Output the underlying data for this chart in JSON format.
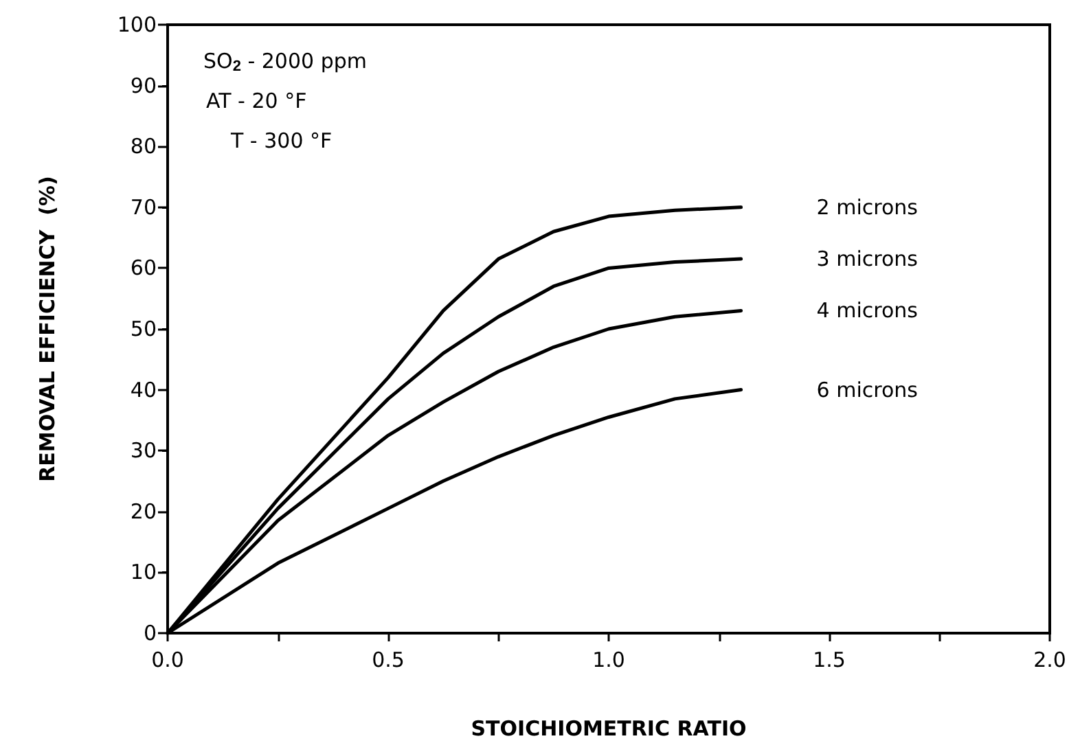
{
  "chart_data": {
    "type": "line",
    "xlabel": "STOICHIOMETRIC RATIO",
    "ylabel": "REMOVAL EFFICIENCY  (%)",
    "annotations": [
      "SO$_{2}$ - 2000 ppm",
      "AT - 20 °F",
      "T - 300 °F"
    ],
    "x": [
      0,
      0.25,
      0.5,
      0.625,
      0.75,
      0.875,
      1.0,
      1.15,
      1.3
    ],
    "series": [
      {
        "name": "2 microns",
        "color": "#000000",
        "values": [
          0,
          22,
          42,
          53,
          61.5,
          66,
          68.5,
          69.5,
          70
        ]
      },
      {
        "name": "3 microns",
        "color": "#000000",
        "values": [
          0,
          20.5,
          38.5,
          46,
          52,
          57,
          60,
          61,
          61.5
        ]
      },
      {
        "name": "4 microns",
        "color": "#000000",
        "values": [
          0,
          18.5,
          32.5,
          38,
          43,
          47,
          50,
          52,
          53
        ]
      },
      {
        "name": "6 microns",
        "color": "#000000",
        "values": [
          0,
          11.5,
          20.5,
          25,
          29,
          32.5,
          35.5,
          38.5,
          40
        ]
      }
    ],
    "xlim": [
      0,
      2
    ],
    "xticks": [
      {
        "value": 0,
        "label": "0.0"
      },
      {
        "value": 0.25,
        "label": null
      },
      0.5,
      {
        "value": 0.75,
        "label": null
      },
      {
        "value": 1,
        "label": "1.0"
      },
      {
        "value": 1.25,
        "label": null
      },
      1.5,
      {
        "value": 1.75,
        "label": null
      },
      {
        "value": 2,
        "label": "2.0"
      }
    ],
    "ylim": [
      0,
      100
    ],
    "yticks": [
      0,
      10,
      20,
      30,
      40,
      50,
      60,
      70,
      80,
      90,
      100
    ],
    "marker": "none",
    "line_style": "solid",
    "legend": false
  }
}
